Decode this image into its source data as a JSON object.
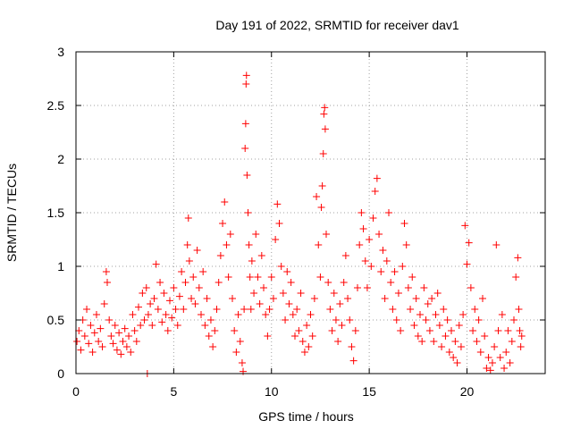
{
  "chart_data": {
    "type": "scatter",
    "title": "Day 191 of 2022, SRMTID for receiver dav1",
    "xlabel": "GPS time / hours",
    "ylabel": "SRMTID / TECUs",
    "xlim": [
      0,
      24
    ],
    "ylim": [
      0,
      3
    ],
    "xticks": [
      0,
      5,
      10,
      15,
      20
    ],
    "xtick_labels": [
      "0",
      "5",
      "10",
      "15",
      "20"
    ],
    "yticks": [
      0,
      0.5,
      1,
      1.5,
      2,
      2.5,
      3
    ],
    "ytick_labels": [
      "0",
      "0.5",
      "1",
      "1.5",
      "2",
      "2.5",
      "3"
    ],
    "grid": true,
    "marker": "+",
    "color": "#ff0000",
    "series": [
      {
        "name": "SRMTID",
        "points": [
          [
            0.05,
            0.3
          ],
          [
            0.15,
            0.4
          ],
          [
            0.25,
            0.22
          ],
          [
            0.35,
            0.5
          ],
          [
            0.45,
            0.35
          ],
          [
            0.55,
            0.6
          ],
          [
            0.65,
            0.28
          ],
          [
            0.75,
            0.45
          ],
          [
            0.85,
            0.2
          ],
          [
            0.95,
            0.38
          ],
          [
            1.05,
            0.55
          ],
          [
            1.15,
            0.3
          ],
          [
            1.25,
            0.42
          ],
          [
            1.35,
            0.25
          ],
          [
            1.45,
            0.65
          ],
          [
            1.55,
            0.95
          ],
          [
            1.6,
            0.85
          ],
          [
            1.7,
            0.5
          ],
          [
            1.8,
            0.35
          ],
          [
            1.9,
            0.28
          ],
          [
            2.0,
            0.45
          ],
          [
            2.1,
            0.22
          ],
          [
            2.2,
            0.38
          ],
          [
            2.3,
            0.18
          ],
          [
            2.4,
            0.3
          ],
          [
            2.5,
            0.42
          ],
          [
            2.6,
            0.25
          ],
          [
            2.7,
            0.35
          ],
          [
            2.8,
            0.2
          ],
          [
            2.9,
            0.55
          ],
          [
            3.0,
            0.4
          ],
          [
            3.1,
            0.3
          ],
          [
            3.2,
            0.62
          ],
          [
            3.3,
            0.45
          ],
          [
            3.4,
            0.75
          ],
          [
            3.5,
            0.5
          ],
          [
            3.6,
            0.8
          ],
          [
            3.65,
            0.0
          ],
          [
            3.7,
            0.55
          ],
          [
            3.8,
            0.65
          ],
          [
            3.9,
            0.45
          ],
          [
            4.0,
            0.7
          ],
          [
            4.1,
            1.02
          ],
          [
            4.2,
            0.6
          ],
          [
            4.3,
            0.85
          ],
          [
            4.4,
            0.48
          ],
          [
            4.5,
            0.75
          ],
          [
            4.6,
            0.55
          ],
          [
            4.7,
            0.4
          ],
          [
            4.8,
            0.68
          ],
          [
            4.9,
            0.52
          ],
          [
            5.0,
            0.8
          ],
          [
            5.1,
            0.6
          ],
          [
            5.2,
            0.45
          ],
          [
            5.3,
            0.72
          ],
          [
            5.4,
            0.95
          ],
          [
            5.5,
            0.6
          ],
          [
            5.6,
            0.85
          ],
          [
            5.7,
            1.2
          ],
          [
            5.75,
            1.45
          ],
          [
            5.8,
            1.05
          ],
          [
            5.9,
            0.7
          ],
          [
            6.0,
            0.9
          ],
          [
            6.1,
            0.65
          ],
          [
            6.2,
            1.15
          ],
          [
            6.3,
            0.8
          ],
          [
            6.4,
            0.55
          ],
          [
            6.5,
            0.95
          ],
          [
            6.6,
            0.45
          ],
          [
            6.7,
            0.7
          ],
          [
            6.8,
            0.35
          ],
          [
            6.9,
            0.5
          ],
          [
            7.0,
            0.25
          ],
          [
            7.1,
            0.4
          ],
          [
            7.2,
            0.6
          ],
          [
            7.3,
            0.85
          ],
          [
            7.4,
            1.1
          ],
          [
            7.5,
            1.4
          ],
          [
            7.6,
            1.6
          ],
          [
            7.7,
            1.2
          ],
          [
            7.8,
            0.9
          ],
          [
            7.9,
            1.3
          ],
          [
            8.0,
            0.7
          ],
          [
            8.1,
            0.4
          ],
          [
            8.2,
            0.2
          ],
          [
            8.3,
            0.55
          ],
          [
            8.4,
            0.3
          ],
          [
            8.5,
            0.1
          ],
          [
            8.55,
            0.02
          ],
          [
            8.6,
            0.6
          ],
          [
            8.65,
            2.1
          ],
          [
            8.68,
            2.33
          ],
          [
            8.7,
            2.7
          ],
          [
            8.72,
            2.78
          ],
          [
            8.75,
            1.85
          ],
          [
            8.8,
            1.5
          ],
          [
            8.85,
            1.2
          ],
          [
            8.9,
            0.9
          ],
          [
            8.95,
            0.6
          ],
          [
            9.0,
            1.05
          ],
          [
            9.1,
            0.75
          ],
          [
            9.2,
            1.3
          ],
          [
            9.3,
            0.9
          ],
          [
            9.4,
            0.65
          ],
          [
            9.5,
            1.1
          ],
          [
            9.6,
            0.8
          ],
          [
            9.7,
            0.55
          ],
          [
            9.8,
            0.35
          ],
          [
            9.9,
            0.6
          ],
          [
            10.0,
            0.9
          ],
          [
            10.1,
            0.7
          ],
          [
            10.2,
            1.25
          ],
          [
            10.3,
            1.58
          ],
          [
            10.4,
            1.4
          ],
          [
            10.5,
            1.0
          ],
          [
            10.6,
            0.75
          ],
          [
            10.7,
            0.5
          ],
          [
            10.8,
            0.95
          ],
          [
            10.9,
            0.65
          ],
          [
            11.0,
            0.85
          ],
          [
            11.1,
            0.55
          ],
          [
            11.2,
            0.35
          ],
          [
            11.3,
            0.6
          ],
          [
            11.4,
            0.4
          ],
          [
            11.5,
            0.75
          ],
          [
            11.6,
            0.3
          ],
          [
            11.7,
            0.2
          ],
          [
            11.8,
            0.45
          ],
          [
            11.9,
            0.25
          ],
          [
            12.0,
            0.55
          ],
          [
            12.1,
            0.35
          ],
          [
            12.2,
            0.7
          ],
          [
            12.3,
            1.65
          ],
          [
            12.4,
            1.2
          ],
          [
            12.5,
            0.9
          ],
          [
            12.55,
            1.55
          ],
          [
            12.6,
            1.75
          ],
          [
            12.65,
            2.05
          ],
          [
            12.68,
            2.42
          ],
          [
            12.72,
            2.48
          ],
          [
            12.75,
            2.28
          ],
          [
            12.8,
            1.3
          ],
          [
            12.9,
            0.85
          ],
          [
            13.0,
            0.6
          ],
          [
            13.1,
            0.4
          ],
          [
            13.2,
            0.75
          ],
          [
            13.3,
            0.5
          ],
          [
            13.4,
            0.3
          ],
          [
            13.5,
            0.65
          ],
          [
            13.6,
            0.45
          ],
          [
            13.7,
            0.85
          ],
          [
            13.8,
            1.1
          ],
          [
            13.9,
            0.7
          ],
          [
            14.0,
            0.5
          ],
          [
            14.1,
            0.25
          ],
          [
            14.2,
            0.12
          ],
          [
            14.3,
            0.4
          ],
          [
            14.4,
            0.8
          ],
          [
            14.5,
            1.2
          ],
          [
            14.6,
            1.5
          ],
          [
            14.7,
            1.35
          ],
          [
            14.8,
            1.05
          ],
          [
            14.9,
            0.8
          ],
          [
            15.0,
            1.25
          ],
          [
            15.1,
            1.0
          ],
          [
            15.2,
            1.45
          ],
          [
            15.3,
            1.7
          ],
          [
            15.4,
            1.82
          ],
          [
            15.5,
            1.3
          ],
          [
            15.6,
            0.95
          ],
          [
            15.7,
            1.15
          ],
          [
            15.8,
            0.7
          ],
          [
            15.9,
            1.05
          ],
          [
            16.0,
            1.5
          ],
          [
            16.1,
            0.85
          ],
          [
            16.2,
            0.6
          ],
          [
            16.3,
            0.95
          ],
          [
            16.4,
            0.5
          ],
          [
            16.5,
            0.75
          ],
          [
            16.6,
            0.4
          ],
          [
            16.7,
            1.0
          ],
          [
            16.8,
            1.4
          ],
          [
            16.9,
            1.2
          ],
          [
            17.0,
            0.8
          ],
          [
            17.1,
            0.6
          ],
          [
            17.2,
            0.9
          ],
          [
            17.3,
            0.45
          ],
          [
            17.4,
            0.7
          ],
          [
            17.5,
            0.35
          ],
          [
            17.6,
            0.55
          ],
          [
            17.7,
            0.3
          ],
          [
            17.8,
            0.8
          ],
          [
            17.9,
            0.5
          ],
          [
            18.0,
            0.65
          ],
          [
            18.1,
            0.4
          ],
          [
            18.2,
            0.7
          ],
          [
            18.3,
            0.3
          ],
          [
            18.4,
            0.55
          ],
          [
            18.5,
            0.75
          ],
          [
            18.6,
            0.45
          ],
          [
            18.7,
            0.25
          ],
          [
            18.8,
            0.6
          ],
          [
            18.9,
            0.35
          ],
          [
            19.0,
            0.5
          ],
          [
            19.1,
            0.2
          ],
          [
            19.2,
            0.4
          ],
          [
            19.3,
            0.15
          ],
          [
            19.4,
            0.3
          ],
          [
            19.5,
            0.1
          ],
          [
            19.6,
            0.45
          ],
          [
            19.7,
            0.25
          ],
          [
            19.8,
            0.55
          ],
          [
            19.9,
            1.38
          ],
          [
            20.0,
            1.02
          ],
          [
            20.1,
            1.22
          ],
          [
            20.2,
            0.8
          ],
          [
            20.3,
            0.4
          ],
          [
            20.4,
            0.6
          ],
          [
            20.5,
            0.3
          ],
          [
            20.6,
            0.5
          ],
          [
            20.7,
            0.2
          ],
          [
            20.8,
            0.7
          ],
          [
            20.9,
            0.35
          ],
          [
            21.0,
            0.05
          ],
          [
            21.1,
            0.15
          ],
          [
            21.2,
            0.03
          ],
          [
            21.3,
            0.1
          ],
          [
            21.4,
            0.25
          ],
          [
            21.5,
            1.2
          ],
          [
            21.6,
            0.4
          ],
          [
            21.7,
            0.15
          ],
          [
            21.8,
            0.55
          ],
          [
            21.9,
            0.05
          ],
          [
            22.0,
            0.2
          ],
          [
            22.1,
            0.4
          ],
          [
            22.2,
            0.1
          ],
          [
            22.3,
            0.3
          ],
          [
            22.4,
            0.5
          ],
          [
            22.5,
            0.9
          ],
          [
            22.6,
            1.08
          ],
          [
            22.65,
            0.6
          ],
          [
            22.7,
            0.4
          ],
          [
            22.75,
            0.25
          ],
          [
            22.8,
            0.35
          ]
        ]
      }
    ]
  }
}
